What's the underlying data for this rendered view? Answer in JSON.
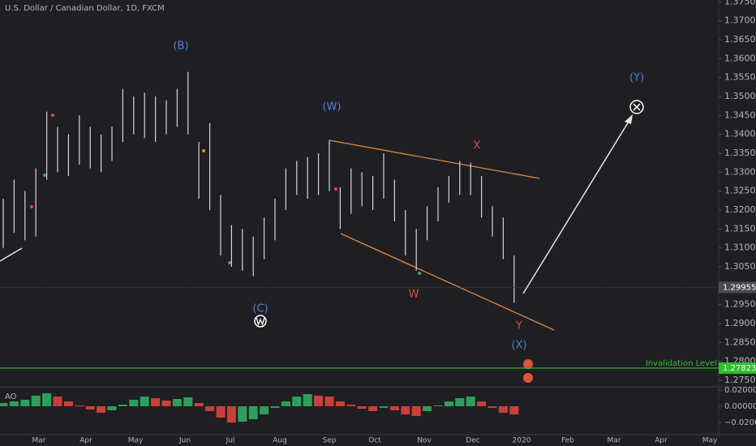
{
  "header": {
    "symbol": "U.S. Dollar / Canadian Dollar, 1D, FXCM"
  },
  "chart_data": [
    {
      "type": "ohlc",
      "x_labels": [
        "Mar",
        "Apr",
        "May",
        "Jun",
        "Jul",
        "Aug",
        "Sep",
        "Oct",
        "Nov",
        "Dec",
        "2020",
        "Feb",
        "Mar",
        "Apr",
        "May"
      ],
      "series": [
        {
          "name": "USDCAD",
          "color": "#d6d6d6",
          "high": [
            1.323,
            1.328,
            1.325,
            1.331,
            1.346,
            1.342,
            1.34,
            1.345,
            1.342,
            1.34,
            1.342,
            1.352,
            1.35,
            1.351,
            1.35,
            1.349,
            1.352,
            1.3565,
            1.338,
            1.343,
            1.324,
            1.316,
            1.315,
            1.313,
            1.318,
            1.323,
            1.331,
            1.333,
            1.334,
            1.335,
            1.3385,
            1.326,
            1.331,
            1.33,
            1.329,
            1.335,
            1.328,
            1.32,
            1.315,
            1.321,
            1.326,
            1.329,
            1.333,
            1.3325,
            1.329,
            1.321,
            1.318,
            1.308
          ],
          "low": [
            1.31,
            1.314,
            1.312,
            1.313,
            1.328,
            1.33,
            1.329,
            1.332,
            1.331,
            1.33,
            1.333,
            1.338,
            1.34,
            1.339,
            1.338,
            1.34,
            1.342,
            1.34,
            1.323,
            1.32,
            1.308,
            1.305,
            1.304,
            1.3025,
            1.307,
            1.312,
            1.32,
            1.324,
            1.323,
            1.324,
            1.325,
            1.315,
            1.319,
            1.321,
            1.32,
            1.323,
            1.317,
            1.308,
            1.304,
            1.312,
            1.317,
            1.322,
            1.324,
            1.324,
            1.318,
            1.313,
            1.307,
            1.2955
          ]
        }
      ],
      "ylim": [
        1.2735,
        1.3755
      ],
      "yticks": [
        {
          "value": 1.275,
          "label": "1.27500"
        },
        {
          "value": 1.28,
          "label": "1.28000"
        },
        {
          "value": 1.285,
          "label": "1.28500"
        },
        {
          "value": 1.29,
          "label": "1.29000"
        },
        {
          "value": 1.295,
          "label": "1.29500"
        },
        {
          "value": 1.3,
          "label": "1.30000"
        },
        {
          "value": 1.305,
          "label": "1.30500"
        },
        {
          "value": 1.31,
          "label": "1.31000"
        },
        {
          "value": 1.315,
          "label": "1.31500"
        },
        {
          "value": 1.32,
          "label": "1.32000"
        },
        {
          "value": 1.325,
          "label": "1.32500"
        },
        {
          "value": 1.33,
          "label": "1.33000"
        },
        {
          "value": 1.335,
          "label": "1.33500"
        },
        {
          "value": 1.34,
          "label": "1.34000"
        },
        {
          "value": 1.345,
          "label": "1.34500"
        },
        {
          "value": 1.35,
          "label": "1.35000"
        },
        {
          "value": 1.355,
          "label": "1.35500"
        },
        {
          "value": 1.36,
          "label": "1.36000"
        },
        {
          "value": 1.365,
          "label": "1.36500"
        },
        {
          "value": 1.37,
          "label": "1.37000"
        },
        {
          "value": 1.375,
          "label": "1.37500"
        }
      ],
      "last_price": {
        "value": 1.29955,
        "label": "1.29955"
      },
      "invalidation": {
        "text": "Invalidation Level",
        "value": 1.27823,
        "label": "1.27823"
      },
      "annotations": [
        "(B)",
        "(W)",
        "X",
        "W",
        "Y",
        "(C)",
        "(X)",
        "(Y)"
      ]
    },
    {
      "type": "bar",
      "title": "AO",
      "values": [
        0.004,
        0.006,
        0.008,
        0.013,
        0.016,
        0.012,
        0.006,
        0.001,
        -0.004,
        -0.008,
        -0.005,
        0.002,
        0.008,
        0.012,
        0.01,
        0.007,
        0.009,
        0.011,
        0.004,
        -0.006,
        -0.014,
        -0.02,
        -0.019,
        -0.016,
        -0.01,
        -0.002,
        0.006,
        0.012,
        0.015,
        0.013,
        0.012,
        0.006,
        0.002,
        -0.003,
        -0.006,
        -0.002,
        -0.005,
        -0.01,
        -0.012,
        -0.006,
        0.001,
        0.006,
        0.01,
        0.012,
        0.006,
        -0.002,
        -0.008,
        -0.01
      ],
      "ylim": [
        -0.034,
        0.023
      ],
      "yticks": [
        {
          "value": 0.02,
          "label": "0.02000"
        },
        {
          "value": 0,
          "label": "0.00000"
        },
        {
          "value": -0.02,
          "label": "−0.02000"
        }
      ]
    }
  ]
}
